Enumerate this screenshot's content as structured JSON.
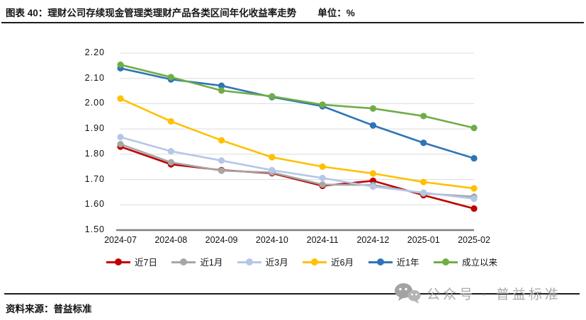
{
  "header": {
    "title": "图表 40：理财公司存续现金管理类理财产品各类区间年化收益率走势",
    "unit": "单位：%"
  },
  "chart_data": {
    "type": "line",
    "title": "理财公司存续现金管理类理财产品各类区间年化收益率走势",
    "unit": "%",
    "x": [
      "2024-07",
      "2024-08",
      "2024-09",
      "2024-10",
      "2024-11",
      "2024-12",
      "2025-01",
      "2025-02"
    ],
    "series": [
      {
        "name": "近7日",
        "color": "#C00000",
        "values": [
          1.83,
          1.76,
          1.737,
          1.725,
          1.675,
          1.695,
          1.638,
          1.585
        ]
      },
      {
        "name": "近1月",
        "color": "#A6A6A6",
        "values": [
          1.84,
          1.768,
          1.735,
          1.728,
          1.68,
          1.678,
          1.645,
          1.632
        ]
      },
      {
        "name": "近3月",
        "color": "#B4C7E7",
        "values": [
          1.868,
          1.812,
          1.775,
          1.737,
          1.706,
          1.672,
          1.648,
          1.624
        ]
      },
      {
        "name": "近6月",
        "color": "#FFC000",
        "values": [
          2.02,
          1.93,
          1.855,
          1.788,
          1.751,
          1.724,
          1.69,
          1.665
        ]
      },
      {
        "name": "近1年",
        "color": "#2E75B6",
        "values": [
          2.14,
          2.096,
          2.071,
          2.026,
          1.99,
          1.914,
          1.845,
          1.784
        ]
      },
      {
        "name": "成立以来",
        "color": "#70AD47",
        "values": [
          2.154,
          2.105,
          2.052,
          2.029,
          1.996,
          1.981,
          1.951,
          1.904
        ]
      }
    ],
    "ylim": [
      1.5,
      2.2
    ],
    "yticks": [
      "2.20",
      "2.10",
      "2.00",
      "1.90",
      "1.80",
      "1.70",
      "1.60",
      "1.50"
    ],
    "grid": true,
    "legend_position": "bottom",
    "grid_color": "#DCDCDC",
    "axis_color": "#7F7F7F"
  },
  "footer": {
    "source_label": "资料来源：普益标准"
  },
  "watermark": {
    "icon": "wechat-icon",
    "text": "公众号 · 普益标准"
  }
}
